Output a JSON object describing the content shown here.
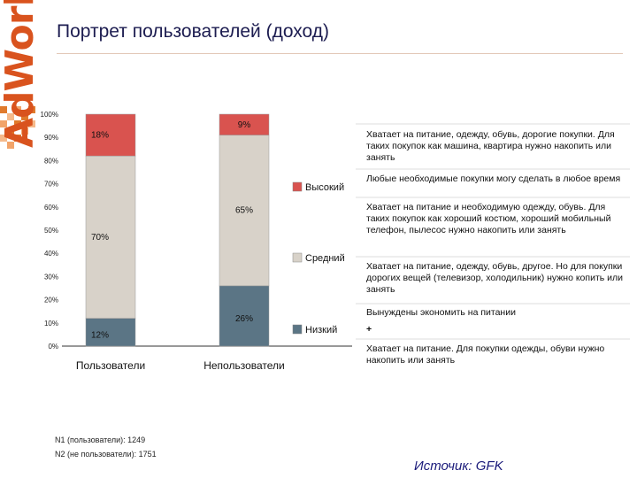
{
  "title": "Портрет пользователей (доход)",
  "logo": "AdWork",
  "chart_data": {
    "type": "bar",
    "stacked": true,
    "ylim": [
      0,
      100
    ],
    "y_ticks": [
      "0%",
      "10%",
      "20%",
      "30%",
      "40%",
      "50%",
      "60%",
      "70%",
      "80%",
      "90%",
      "100%"
    ],
    "categories": [
      "Пользователи",
      "Непользователи"
    ],
    "series": [
      {
        "name": "Низкий",
        "values": [
          12,
          26
        ],
        "labels": [
          "12%",
          "26%"
        ],
        "color": "#5b7585"
      },
      {
        "name": "Средний",
        "values": [
          70,
          65
        ],
        "labels": [
          "70%",
          "65%"
        ],
        "color": "#d8d2c9"
      },
      {
        "name": "Высокий",
        "values": [
          18,
          9
        ],
        "labels": [
          "18%",
          "9%"
        ],
        "color": "#d9534f"
      }
    ],
    "legend_placement": "right",
    "grid": false
  },
  "descriptions": [
    "Хватает на питание, одежду, обувь, дорогие покупки. Для таких покупок как машина, квартира нужно накопить или занять",
    "Любые необходимые покупки могу сделать в любое время",
    "Хватает на питание и необходимую одежду, обувь. Для таких покупок как хороший костюм, хороший мобильный телефон, пылесос нужно накопить или занять",
    "Хватает на питание, одежду, обувь, другое. Но для покупки дорогих вещей (телевизор, холодильник) нужно копить или занять",
    "Вынуждены экономить на питании",
    "+",
    "Хватает на питание. Для покупки одежды, обуви нужно накопить или занять"
  ],
  "notes": [
    "N1 (пользователи): 1249",
    "N2 (не пользователи): 1751"
  ],
  "source": "Источик: GFK"
}
